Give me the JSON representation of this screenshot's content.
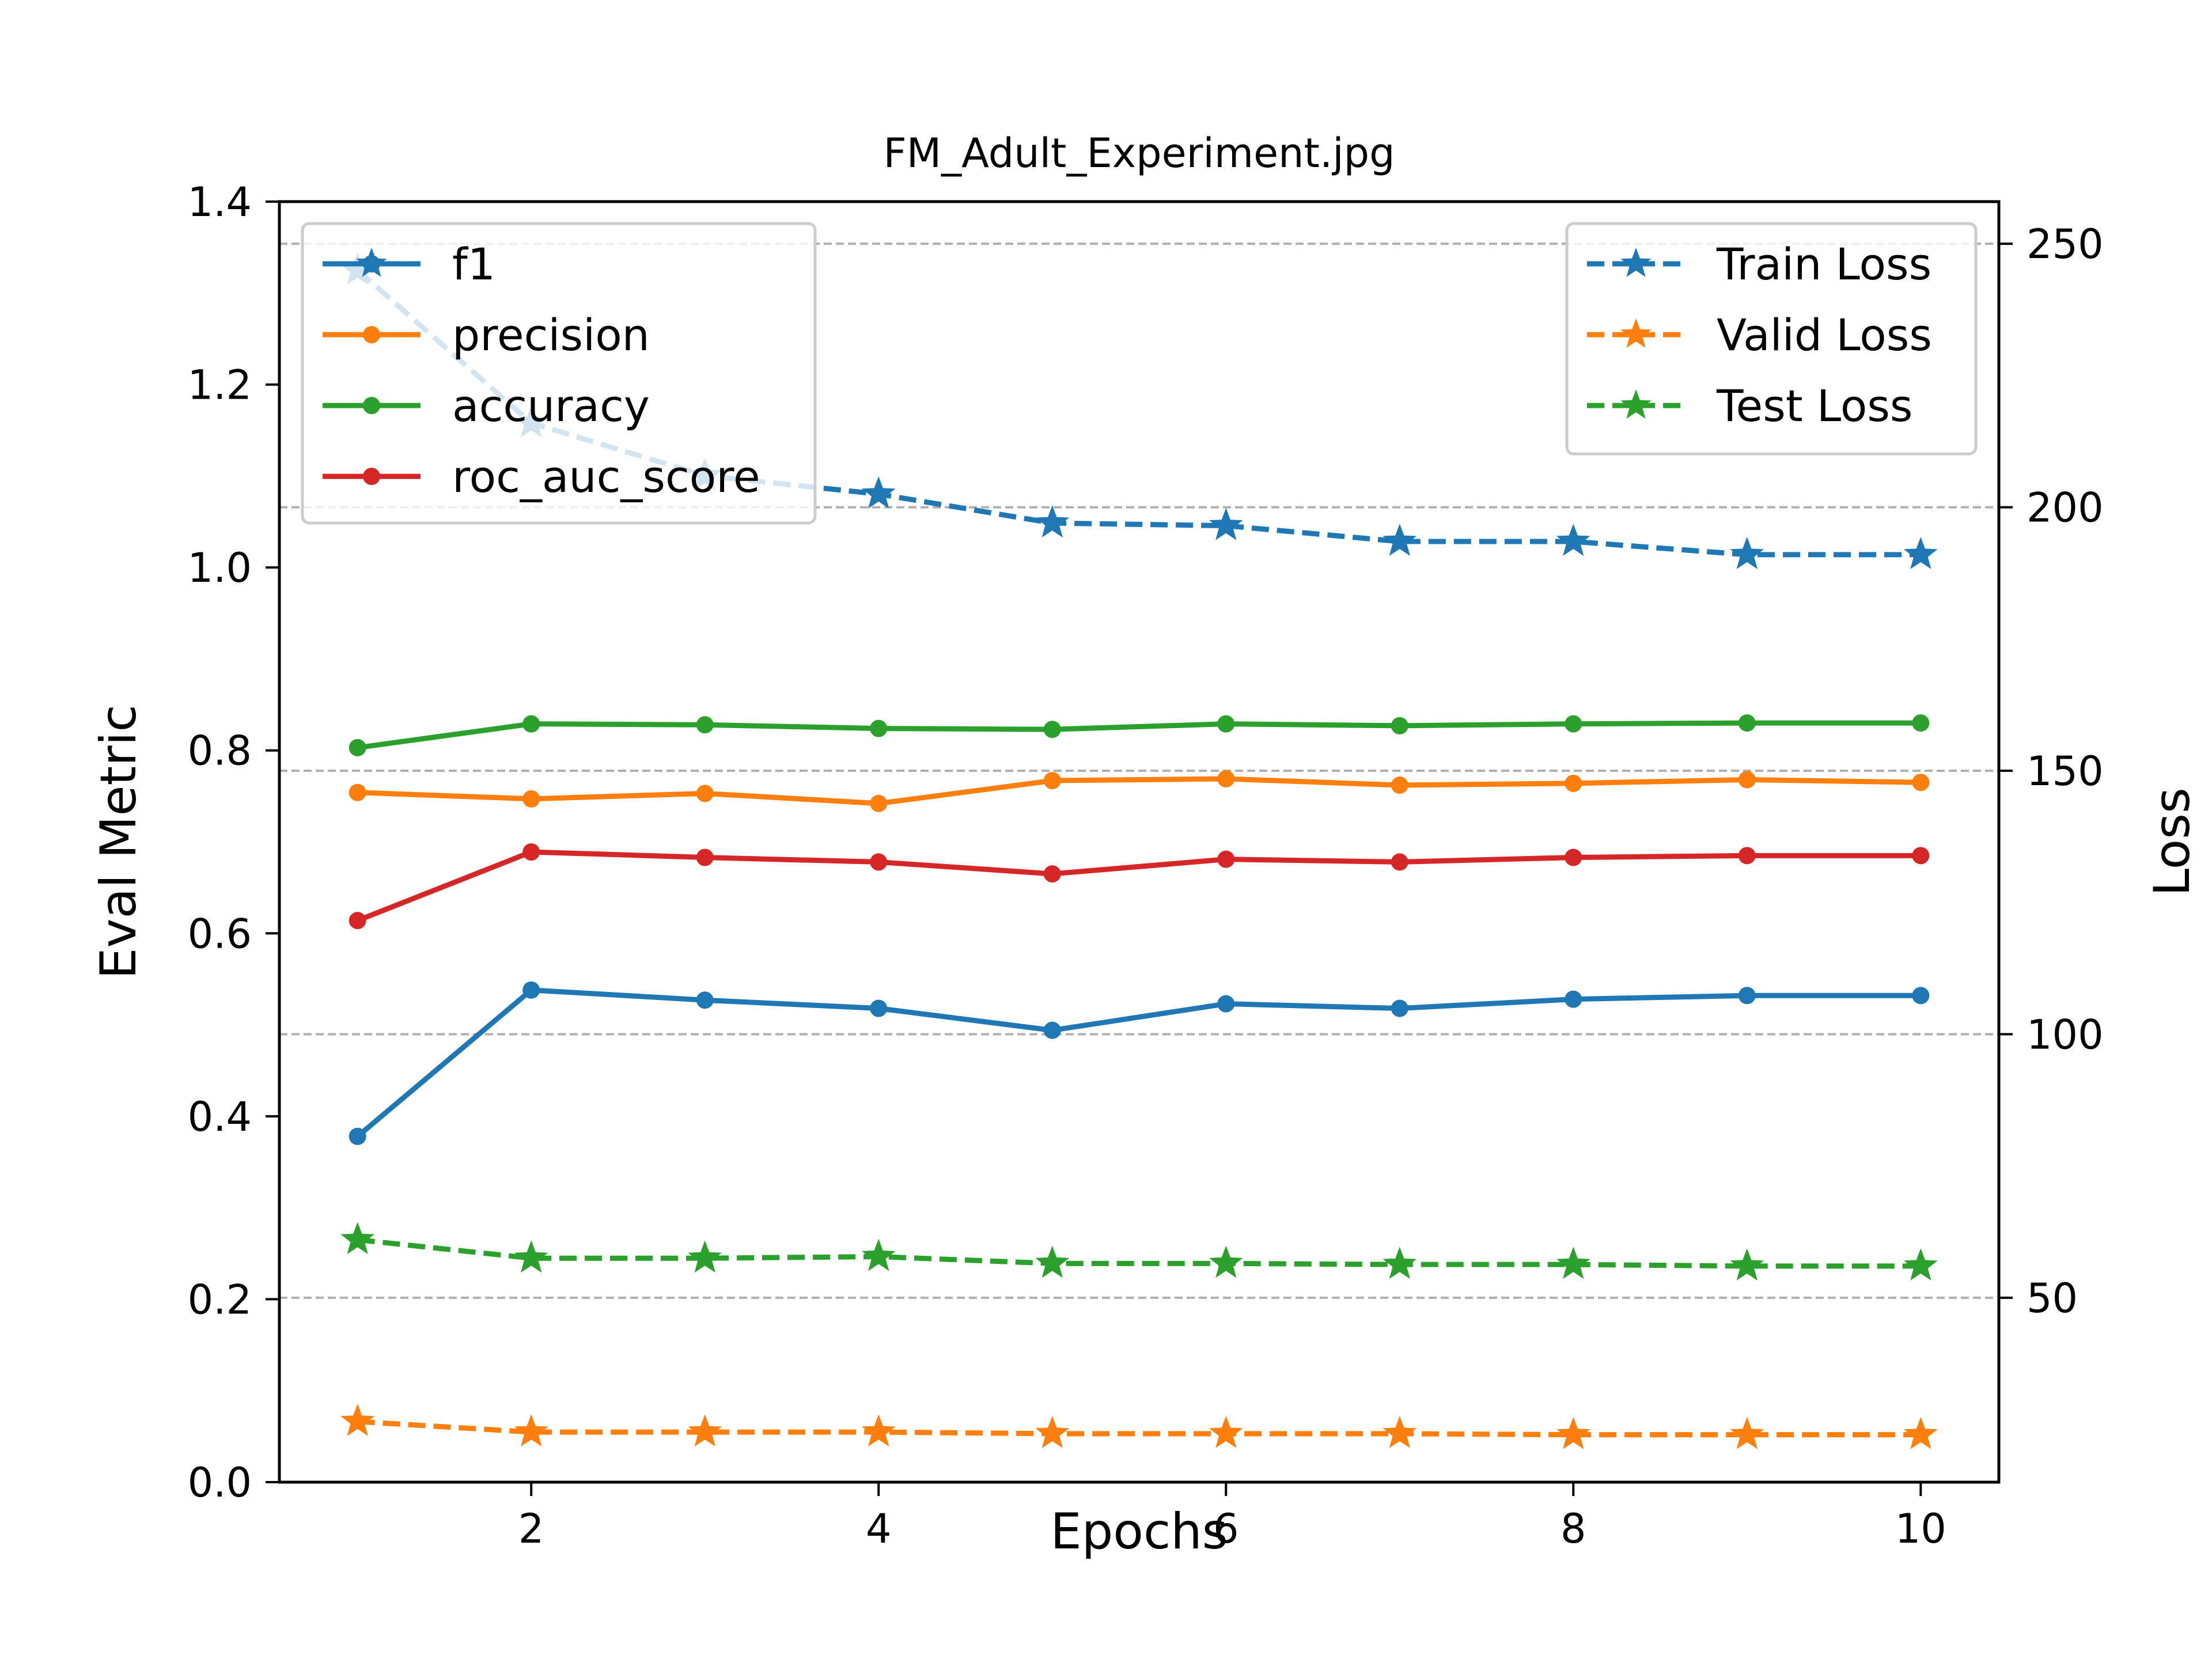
{
  "chart_data": {
    "type": "line",
    "title": "FM_Adult_Experiment.jpg",
    "xlabel": "Epochs",
    "ylabel_left": "Eval Metric",
    "ylabel_right": "Loss",
    "x": [
      1,
      2,
      3,
      4,
      5,
      6,
      7,
      8,
      9,
      10
    ],
    "xlim": [
      0.55,
      10.45
    ],
    "ylim_left": [
      0.0,
      1.4
    ],
    "ylim_right": [
      15.0,
      258.0
    ],
    "x_ticks": [
      "2",
      "4",
      "6",
      "8",
      "10"
    ],
    "y_left_ticks": [
      "0.0",
      "0.2",
      "0.4",
      "0.6",
      "0.8",
      "1.0",
      "1.2",
      "1.4"
    ],
    "y_right_ticks": [
      "50",
      "100",
      "150",
      "200",
      "250"
    ],
    "grid": "right-axis horizontal dashed",
    "series_left": [
      {
        "name": "f1",
        "color": "#1f77b4",
        "values": [
          0.378,
          0.538,
          0.527,
          0.518,
          0.494,
          0.523,
          0.518,
          0.528,
          0.532,
          0.532
        ]
      },
      {
        "name": "precision",
        "color": "#ff7f0e",
        "values": [
          0.754,
          0.747,
          0.753,
          0.742,
          0.767,
          0.769,
          0.762,
          0.764,
          0.768,
          0.765
        ]
      },
      {
        "name": "accuracy",
        "color": "#2ca02c",
        "values": [
          0.803,
          0.829,
          0.828,
          0.824,
          0.823,
          0.829,
          0.827,
          0.829,
          0.83,
          0.83
        ]
      },
      {
        "name": "roc_auc_score",
        "color": "#d62728",
        "values": [
          0.614,
          0.689,
          0.683,
          0.678,
          0.665,
          0.681,
          0.678,
          0.683,
          0.685,
          0.685
        ]
      }
    ],
    "series_right": [
      {
        "name": "Train Loss",
        "color": "#1f77b4",
        "values": [
          245.0,
          216.0,
          206.0,
          202.5,
          197.0,
          196.5,
          193.5,
          193.5,
          191.0,
          191.0
        ]
      },
      {
        "name": "Valid Loss",
        "color": "#ff7f0e",
        "values": [
          26.5,
          24.5,
          24.5,
          24.5,
          24.2,
          24.2,
          24.2,
          24.0,
          24.0,
          24.0
        ]
      },
      {
        "name": "Test Loss",
        "color": "#2ca02c",
        "values": [
          61.0,
          57.5,
          57.5,
          57.8,
          56.5,
          56.5,
          56.3,
          56.3,
          56.0,
          56.0
        ]
      }
    ],
    "legend_left_position": "upper-left",
    "legend_right_position": "upper-right"
  }
}
